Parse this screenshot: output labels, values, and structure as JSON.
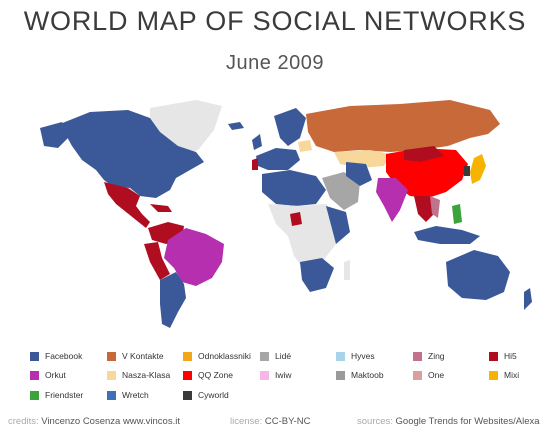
{
  "header": {
    "title": "WORLD MAP OF SOCIAL NETWORKS",
    "subtitle": "June 2009"
  },
  "colors": {
    "facebook": "#3b5998",
    "v_kontakte": "#c8693a",
    "odnoklassniki": "#f2a71b",
    "lide": "#a6a6a6",
    "hyves": "#a9d3e8",
    "zing": "#c0738a",
    "hi5": "#b00e20",
    "orkut": "#b52faf",
    "naszaklasa": "#f7d79a",
    "qqzone": "#ff0000",
    "iwiw": "#f5b7e9",
    "maktoob": "#9a9a9a",
    "one": "#d8a19d",
    "mixi": "#f6b400",
    "friendster": "#3aa43a",
    "wretch": "#3e70b8",
    "cyworld": "#3a3a3a",
    "nodata": "#e6e6e6"
  },
  "legend": [
    {
      "label": "Facebook",
      "color": "#3b5998"
    },
    {
      "label": "V Kontakte",
      "color": "#c8693a"
    },
    {
      "label": "Odnoklassniki",
      "color": "#f2a71b"
    },
    {
      "label": "Lidé",
      "color": "#a6a6a6"
    },
    {
      "label": "Hyves",
      "color": "#a9d3e8"
    },
    {
      "label": "Zing",
      "color": "#c0738a"
    },
    {
      "label": "Hi5",
      "color": "#b00e20"
    },
    {
      "label": "Orkut",
      "color": "#b52faf"
    },
    {
      "label": "Nasza-Klasa",
      "color": "#f7d79a"
    },
    {
      "label": "QQ Zone",
      "color": "#ff0000"
    },
    {
      "label": "Iwiw",
      "color": "#f5b7e9"
    },
    {
      "label": "Maktoob",
      "color": "#9a9a9a"
    },
    {
      "label": "One",
      "color": "#d8a19d"
    },
    {
      "label": "Mixi",
      "color": "#f6b400"
    },
    {
      "label": "Friendster",
      "color": "#3aa43a"
    },
    {
      "label": "Wretch",
      "color": "#3e70b8"
    },
    {
      "label": "Cyworld",
      "color": "#3a3a3a"
    }
  ],
  "footer": {
    "credits_key": "credits:",
    "credits_value": "Vincenzo Cosenza  www.vincos.it",
    "license_key": "license:",
    "license_value": "CC-BY-NC",
    "sources_key": "sources:",
    "sources_value": "Google Trends for Websites/Alexa"
  }
}
